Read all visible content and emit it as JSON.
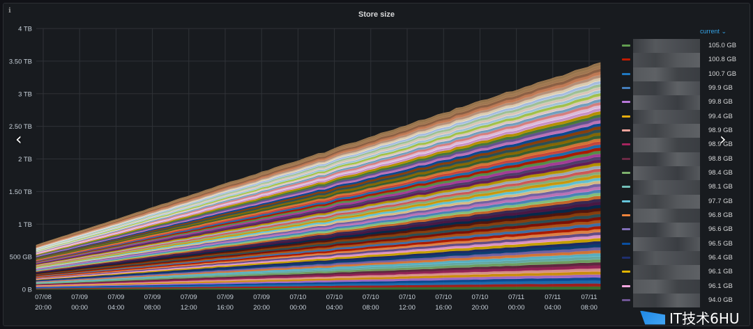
{
  "panel": {
    "title": "Store size",
    "info_icon": "info-icon"
  },
  "chart_data": {
    "type": "area",
    "title": "Store size",
    "stacked": true,
    "y_ticks": [
      "0 B",
      "500 GB",
      "1 TB",
      "1.50 TB",
      "2 TB",
      "2.50 TB",
      "3 TB",
      "3.50 TB",
      "4 TB"
    ],
    "y_unit": "TB",
    "ylim": [
      0,
      4
    ],
    "x_ticks": [
      {
        "date": "07/08",
        "time": "20:00"
      },
      {
        "date": "07/09",
        "time": "00:00"
      },
      {
        "date": "07/09",
        "time": "04:00"
      },
      {
        "date": "07/09",
        "time": "08:00"
      },
      {
        "date": "07/09",
        "time": "12:00"
      },
      {
        "date": "07/09",
        "time": "16:00"
      },
      {
        "date": "07/09",
        "time": "20:00"
      },
      {
        "date": "07/10",
        "time": "00:00"
      },
      {
        "date": "07/10",
        "time": "04:00"
      },
      {
        "date": "07/10",
        "time": "08:00"
      },
      {
        "date": "07/10",
        "time": "12:00"
      },
      {
        "date": "07/10",
        "time": "16:00"
      },
      {
        "date": "07/10",
        "time": "20:00"
      },
      {
        "date": "07/11",
        "time": "00:00"
      },
      {
        "date": "07/11",
        "time": "04:00"
      },
      {
        "date": "07/11",
        "time": "08:00"
      }
    ],
    "total_start_tb": 0.68,
    "total_end_tb": 3.48,
    "grid": true,
    "legend_placement": "right",
    "series_colors": [
      "#3f7d2f",
      "#b5201d",
      "#1f78c1",
      "#0a50a1",
      "#b877d9",
      "#e5a00d",
      "#f2a49c",
      "#a5245e",
      "#6b2a45",
      "#7eb26d",
      "#73bfb8",
      "#65c5db",
      "#ef843c",
      "#806eb7",
      "#0a437c",
      "#1f2f6f",
      "#e0b400",
      "#f9a8e0",
      "#6f5594",
      "#f9934e",
      "#bf1b00",
      "#447ebc",
      "#c15c17",
      "#890f02",
      "#2f575e",
      "#99440a",
      "#58140c",
      "#052b51",
      "#511749",
      "#3f2b5b",
      "#e0752d",
      "#96d98d",
      "#5195ce",
      "#d683ce",
      "#806eb7",
      "#f4d598",
      "#70dbed",
      "#e5ac0e",
      "#9ac48a",
      "#ea6460",
      "#b2c0d0",
      "#cca300",
      "#6d1f62",
      "#584477",
      "#ba43a9",
      "#629e51",
      "#bf1b00",
      "#1f78c1",
      "#e24d42",
      "#ef843c",
      "#3f6833",
      "#967302",
      "#2f575e",
      "#99440a",
      "#0a50a1",
      "#d683ce",
      "#705da0",
      "#508642",
      "#cca300",
      "#e5a8e2",
      "#f9d9f9",
      "#f29191",
      "#82b5d8",
      "#fce2de",
      "#bada55",
      "#badff4",
      "#f9e2d2",
      "#b7dbab",
      "#c0d8ff",
      "#fceaca",
      "#cfa48b",
      "#dc8a5f",
      "#9f6b4b",
      "#b6875c",
      "#a98155"
    ],
    "legend_header": "current",
    "legend_values": [
      "105.0 GB",
      "100.8 GB",
      "100.7 GB",
      "99.9 GB",
      "99.8 GB",
      "99.4 GB",
      "98.9 GB",
      "98.9 GB",
      "98.8 GB",
      "98.4 GB",
      "98.1 GB",
      "97.7 GB",
      "96.8 GB",
      "96.6 GB",
      "96.5 GB",
      "96.4 GB",
      "96.1 GB",
      "96.1 GB",
      "94.0 GB"
    ],
    "legend_colors": [
      "#629e51",
      "#bf1b00",
      "#1f78c1",
      "#447ebc",
      "#b877d9",
      "#e5ac0e",
      "#f2a49c",
      "#a5245e",
      "#6b2a45",
      "#7eb26d",
      "#73bfb8",
      "#65c5db",
      "#ef843c",
      "#806eb7",
      "#0a50a1",
      "#1f2f6f",
      "#e0b400",
      "#f9a8e0",
      "#6f5594"
    ]
  },
  "navigation": {
    "prev": "‹",
    "next": "›"
  },
  "watermark": {
    "text": "IT技术6HU"
  }
}
